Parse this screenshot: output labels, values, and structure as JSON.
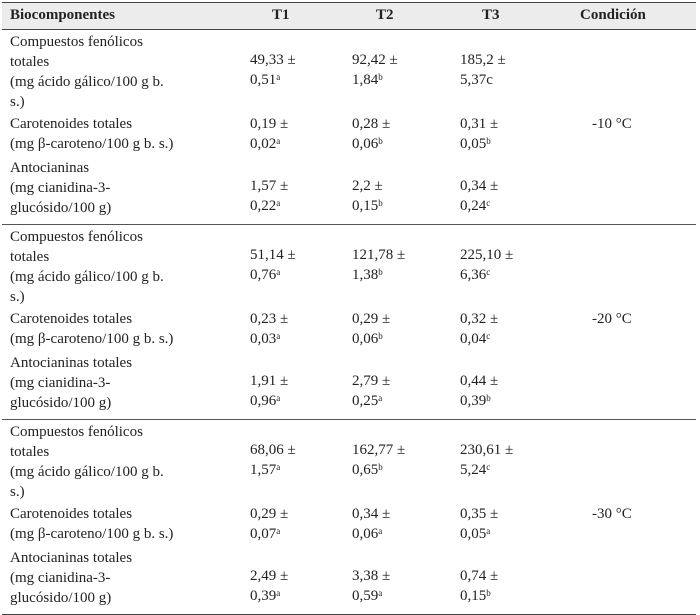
{
  "headers": [
    "Biocomponentes",
    "T1",
    "T2",
    "T3",
    "Condición"
  ],
  "groups": [
    {
      "condition": "-10 °C",
      "rows": [
        {
          "bio": [
            "Compuestos fenólicos",
            "totales",
            " (mg ácido gálico/100 g b.",
            "s.)"
          ],
          "t1": {
            "a": "49,33 ±",
            "b": "0,51",
            "sup": "a"
          },
          "t2": {
            "a": "92,42 ±",
            "b": "1,84",
            "sup": "b"
          },
          "t3": {
            "a": "185,2 ±",
            "b": "5,37c",
            "sup": ""
          }
        },
        {
          "bio": [
            "Carotenoides totales",
            "(mg β-caroteno/100 g b. s.)"
          ],
          "t1": {
            "a": "0,19 ±",
            "b": "0,02",
            "sup": "a"
          },
          "t2": {
            "a": "0,28 ±",
            "b": "0,06",
            "sup": "b"
          },
          "t3": {
            "a": "0,31 ±",
            "b": "0,05",
            "sup": "b"
          }
        },
        {
          "bio": [
            "Antocianinas",
            "(mg cianidina-3-",
            "glucósido/100 g)"
          ],
          "t1": {
            "a": "1,57 ±",
            "b": "0,22",
            "sup": "a"
          },
          "t2": {
            "a": "2,2 ±",
            "b": "0,15",
            "sup": "b"
          },
          "t3": {
            "a": "0,34 ±",
            "b": "0,24",
            "sup": "c"
          }
        }
      ]
    },
    {
      "condition": "-20 °C",
      "rows": [
        {
          "bio": [
            "Compuestos fenólicos",
            "totales",
            " (mg ácido gálico/100 g b.",
            "s.)"
          ],
          "t1": {
            "a": "51,14 ±",
            "b": "0,76",
            "sup": "a"
          },
          "t2": {
            "a": "121,78 ±",
            "b": "1,38",
            "sup": "b"
          },
          "t3": {
            "a": "225,10 ±",
            "b": "6,36",
            "sup": "c"
          }
        },
        {
          "bio": [
            "Carotenoides totales",
            "(mg β-caroteno/100 g b. s.)"
          ],
          "t1": {
            "a": "0,23 ±",
            "b": "0,03",
            "sup": "a"
          },
          "t2": {
            "a": "0,29 ±",
            "b": "0,06",
            "sup": "b"
          },
          "t3": {
            "a": "0,32 ±",
            "b": "0,04",
            "sup": "c"
          }
        },
        {
          "bio": [
            "Antocianinas totales",
            "(mg cianidina-3-",
            "glucósido/100 g)"
          ],
          "t1": {
            "a": "1,91 ±",
            "b": "0,96",
            "sup": "a"
          },
          "t2": {
            "a": "2,79 ±",
            "b": "0,25",
            "sup": "a"
          },
          "t3": {
            "a": "0,44 ±",
            "b": "0,39",
            "sup": "b"
          }
        }
      ]
    },
    {
      "condition": "-30 °C",
      "rows": [
        {
          "bio": [
            "Compuestos fenólicos",
            "totales",
            " (mg ácido gálico/100 g b.",
            "s.)"
          ],
          "t1": {
            "a": "68,06 ±",
            "b": "1,57",
            "sup": "a"
          },
          "t2": {
            "a": "162,77 ±",
            "b": "0,65",
            "sup": "b"
          },
          "t3": {
            "a": "230,61 ±",
            "b": "5,24",
            "sup": "c"
          }
        },
        {
          "bio": [
            "Carotenoides totales",
            "(mg β-caroteno/100 g b. s.)"
          ],
          "t1": {
            "a": "0,29 ±",
            "b": "0,07",
            "sup": "a"
          },
          "t2": {
            "a": "0,34 ±",
            "b": "0,06",
            "sup": "a"
          },
          "t3": {
            "a": "0,35 ±",
            "b": "0,05",
            "sup": "a"
          }
        },
        {
          "bio": [
            "Antocianinas totales",
            "(mg cianidina-3-",
            "glucósido/100 g)"
          ],
          "t1": {
            "a": "2,49 ±",
            "b": "0,39",
            "sup": "a"
          },
          "t2": {
            "a": "3,38 ±",
            "b": "0,59",
            "sup": "a"
          },
          "t3": {
            "a": "0,74 ±",
            "b": "0,15",
            "sup": "b"
          }
        }
      ]
    }
  ]
}
